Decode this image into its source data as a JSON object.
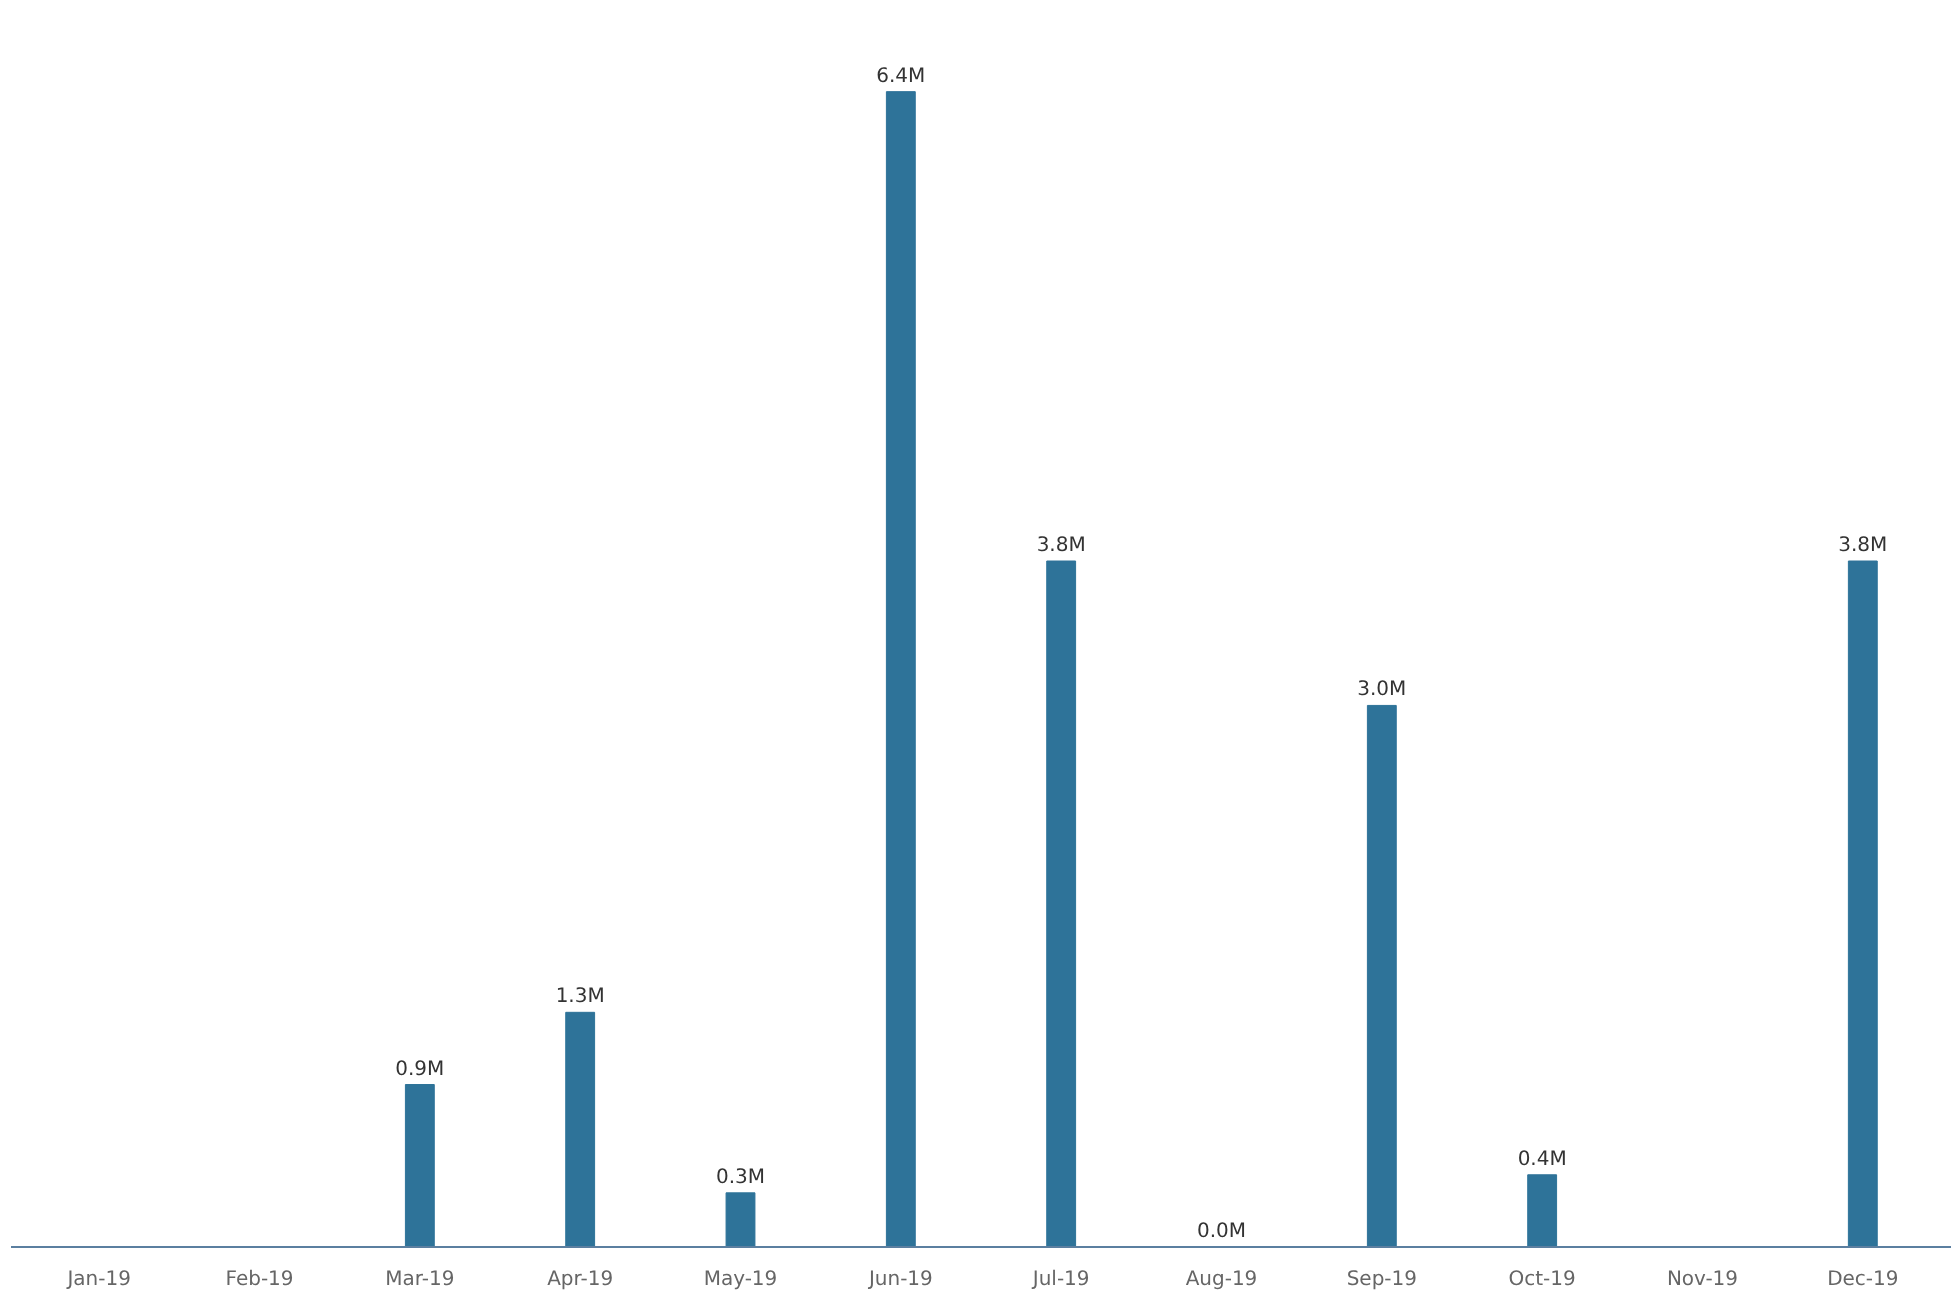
{
  "chart_data": {
    "type": "bar",
    "categories": [
      "Jan-19",
      "Feb-19",
      "Mar-19",
      "Apr-19",
      "May-19",
      "Jun-19",
      "Jul-19",
      "Aug-19",
      "Sep-19",
      "Oct-19",
      "Nov-19",
      "Dec-19"
    ],
    "values": [
      null,
      null,
      0.9,
      1.3,
      0.3,
      6.4,
      3.8,
      0.0,
      3.0,
      0.4,
      null,
      3.8
    ],
    "value_labels": [
      null,
      null,
      "0.9M",
      "1.3M",
      "0.3M",
      "6.4M",
      "3.8M",
      "0.0M",
      "3.0M",
      "0.4M",
      null,
      "3.8M"
    ],
    "color": "#2e7399",
    "grid": false
  }
}
